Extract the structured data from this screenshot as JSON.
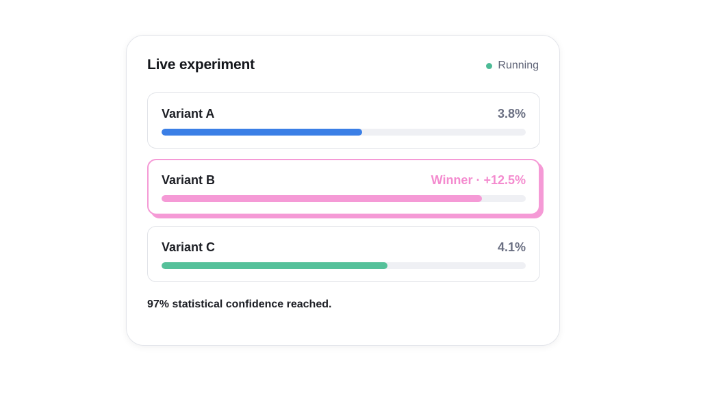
{
  "card": {
    "title": "Live experiment",
    "status": {
      "label": "Running",
      "color": "#4dbb96"
    },
    "variants": [
      {
        "name": "Variant A",
        "value": "3.8%",
        "progress": 0.55,
        "color": "#3b7fe6",
        "winner": false
      },
      {
        "name": "Variant B",
        "value": "Winner · +12.5%",
        "progress": 0.88,
        "color": "#f59ad6",
        "value_color": "#f48bcf",
        "winner": true
      },
      {
        "name": "Variant C",
        "value": "4.1%",
        "progress": 0.62,
        "color": "#55c19a",
        "winner": false
      }
    ],
    "footer": "97% statistical confidence reached."
  }
}
